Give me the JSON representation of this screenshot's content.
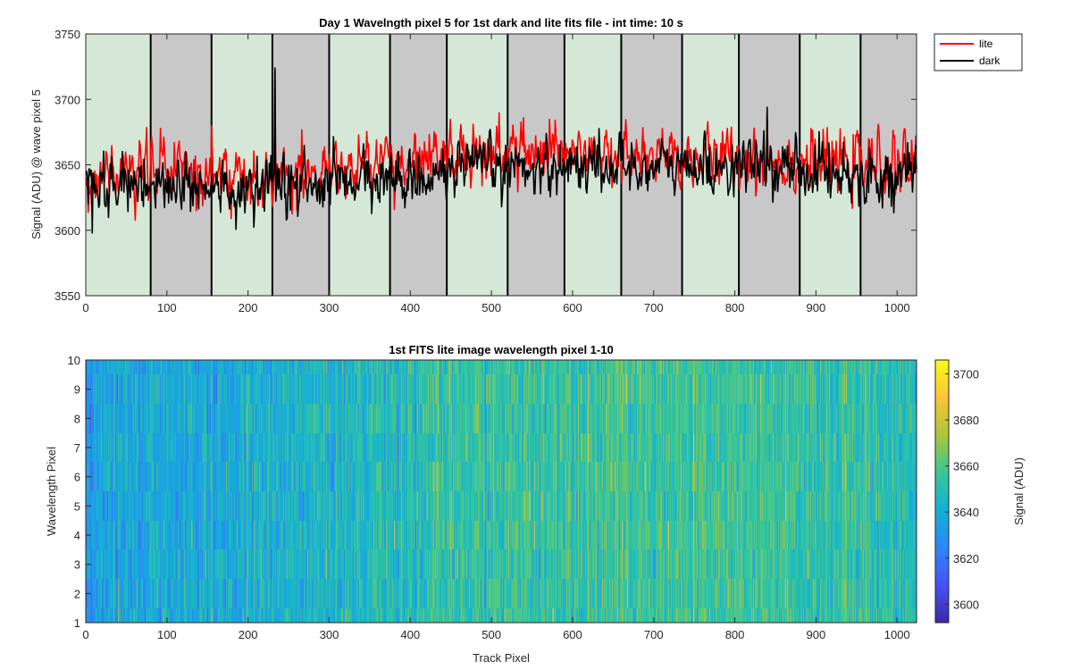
{
  "chart_data": [
    {
      "type": "line",
      "title": "Day 1 Wavelngth pixel 5 for 1st dark and lite fits file - int time: 10 s",
      "xlabel": "",
      "ylabel": "Signal (ADU) @ wave pixel 5",
      "xlim": [
        0,
        1024
      ],
      "ylim": [
        3550,
        3750
      ],
      "xticks": [
        0,
        100,
        200,
        300,
        400,
        500,
        600,
        700,
        800,
        900,
        1000
      ],
      "yticks": [
        3550,
        3600,
        3650,
        3700,
        3750
      ],
      "grid": false,
      "legend": "outside-top-right",
      "background_bands": {
        "boundaries": [
          0,
          80,
          155,
          230,
          300,
          375,
          445,
          520,
          590,
          660,
          735,
          805,
          880,
          955,
          1024
        ],
        "colors": [
          "#d5e8d8",
          "#c8c8c8"
        ]
      },
      "series": [
        {
          "name": "lite",
          "color": "#ff0000",
          "trend": {
            "x": [
              0,
              100,
              200,
              300,
              400,
              500,
              600,
              700,
              800,
              900,
              1024
            ],
            "y": [
              3640,
              3648,
              3642,
              3645,
              3652,
              3658,
              3656,
              3654,
              3655,
              3652,
              3648
            ]
          },
          "noise": 12,
          "spikes": [
            {
              "x": 233,
              "y": 3722
            },
            {
              "x": 155,
              "y": 3680
            },
            {
              "x": 540,
              "y": 3686
            },
            {
              "x": 840,
              "y": 3690
            }
          ]
        },
        {
          "name": "dark",
          "color": "#000000",
          "trend": {
            "x": [
              0,
              100,
              200,
              300,
              400,
              500,
              600,
              700,
              800,
              900,
              1024
            ],
            "y": [
              3634,
              3636,
              3630,
              3635,
              3640,
              3648,
              3650,
              3648,
              3649,
              3646,
              3640
            ]
          },
          "noise": 11,
          "spikes": [
            {
              "x": 233,
              "y": 3724
            },
            {
              "x": 8,
              "y": 3598
            },
            {
              "x": 840,
              "y": 3694
            }
          ]
        }
      ],
      "n_points": 1024
    },
    {
      "type": "heatmap",
      "title": "1st FITS lite image wavelength pixel 1-10",
      "xlabel": "Track Pixel",
      "ylabel": "Wavelength Pixel",
      "xlim": [
        0,
        1024
      ],
      "ylim": [
        1,
        10
      ],
      "xticks": [
        0,
        100,
        200,
        300,
        400,
        500,
        600,
        700,
        800,
        900,
        1000
      ],
      "yticks": [
        1,
        2,
        3,
        4,
        5,
        6,
        7,
        8,
        9,
        10
      ],
      "rows": 10,
      "cols": 1024,
      "value_range": [
        3592,
        3706
      ],
      "trend": {
        "x": [
          0,
          200,
          400,
          600,
          800,
          1024
        ],
        "y": [
          3636,
          3640,
          3650,
          3656,
          3655,
          3650
        ]
      },
      "noise": 11,
      "colorbar": {
        "label": "Signal (ADU)",
        "ticks": [
          3600,
          3620,
          3640,
          3660,
          3680,
          3700
        ],
        "range": [
          3592,
          3706
        ],
        "colormap": "parula"
      }
    }
  ]
}
